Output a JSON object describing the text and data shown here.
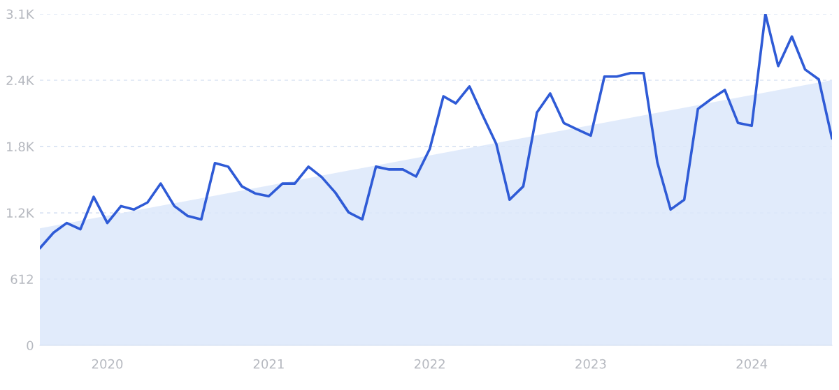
{
  "chart_data": {
    "type": "line",
    "x": [
      "2019-08",
      "2019-09",
      "2019-10",
      "2019-11",
      "2019-12",
      "2020-01",
      "2020-02",
      "2020-03",
      "2020-04",
      "2020-05",
      "2020-06",
      "2020-07",
      "2020-08",
      "2020-09",
      "2020-10",
      "2020-11",
      "2020-12",
      "2021-01",
      "2021-02",
      "2021-03",
      "2021-04",
      "2021-05",
      "2021-06",
      "2021-07",
      "2021-08",
      "2021-09",
      "2021-10",
      "2021-11",
      "2021-12",
      "2022-01",
      "2022-02",
      "2022-03",
      "2022-04",
      "2022-05",
      "2022-06",
      "2022-07",
      "2022-08",
      "2022-09",
      "2022-10",
      "2022-11",
      "2022-12",
      "2023-01",
      "2023-02",
      "2023-03",
      "2023-04",
      "2023-05",
      "2023-06",
      "2023-07",
      "2023-08",
      "2023-09",
      "2023-10",
      "2023-11",
      "2023-12",
      "2024-01",
      "2024-02",
      "2024-03",
      "2024-04",
      "2024-05",
      "2024-06",
      "2024-07"
    ],
    "series": [
      {
        "type": "area",
        "color": "#dce8fa",
        "x": [
          "2019-08",
          "2024-07"
        ],
        "values": [
          1080,
          2450
        ]
      },
      {
        "color": "#2f5bd6",
        "values": [
          897,
          1040,
          1130,
          1072,
          1371,
          1130,
          1286,
          1254,
          1319,
          1494,
          1286,
          1195,
          1163,
          1683,
          1650,
          1468,
          1403,
          1377,
          1494,
          1494,
          1650,
          1553,
          1410,
          1228,
          1163,
          1650,
          1624,
          1624,
          1559,
          1813,
          2300,
          2235,
          2391,
          2124,
          1858,
          1345,
          1468,
          2150,
          2326,
          2053,
          1995,
          1936,
          2482,
          2482,
          2514,
          2514,
          1689,
          1254,
          1345,
          2183,
          2274,
          2358,
          2053,
          2027,
          3060,
          2579,
          2852,
          2547,
          2456,
          1910
        ]
      }
    ],
    "ylim": [
      0,
      3060
    ],
    "yticks": [
      0,
      612,
      {
        "value": 1224,
        "label": "1.2K"
      },
      {
        "value": 1836,
        "label": "1.8K"
      },
      {
        "value": 2448,
        "label": "2.4K"
      },
      {
        "value": 3060,
        "label": "3.1K"
      }
    ],
    "xlim": [
      "2019-08",
      "2024-07"
    ],
    "xticks": [
      {
        "value": "2020-01",
        "label": "2020"
      },
      {
        "value": "2021-01",
        "label": "2021"
      },
      {
        "value": "2022-01",
        "label": "2022"
      },
      {
        "value": "2023-01",
        "label": "2023"
      },
      {
        "value": "2024-01",
        "label": "2024"
      }
    ],
    "grid": "y",
    "line_style": "solid",
    "marker": "none",
    "legend": false
  }
}
